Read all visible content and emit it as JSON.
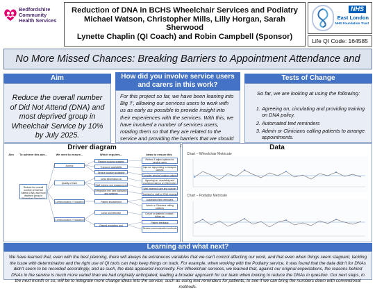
{
  "header": {
    "org_name": [
      "Bedfordshire",
      "Community",
      "Health Services"
    ],
    "title_lines": [
      "Reduction of DNA in BCHS Wheelchair Services and Podiatry",
      "Michael Watson, Christopher Mills, Lilly Horgan, Sarah Sherwood",
      "Lynette Chaplin (QI Coach) and Robin Campbell (Sponsor)"
    ],
    "nhs_badge": "NHS",
    "trust_name": [
      "East London",
      "NHS Foundation Trust"
    ],
    "qi_code": "Life QI Code: 164585"
  },
  "banner": "No More Missed Chances: Breaking Barriers to Appointment Attendance and DNAs!",
  "aim": {
    "heading": "Aim",
    "text": "Reduce the overall number of Did Not Attend (DNA) and most deprived group in Wheelchair Service by 10% by July 2025."
  },
  "involvement": {
    "heading": "How did you involve service users and carers in this work?",
    "text": "For this project so far, we have been leaning into Big ‘I’, allowing our services users to work with us as early as possible to provide insight into their experiences with the services. With this, we have involved a number of services users, rotating them so that they are related to the service and providing the barriers that we should be focusing on in our work."
  },
  "tests": {
    "heading": "Tests of Change",
    "intro": "So far, we are looking at using the following:",
    "items": [
      "Agreeing on, circulating and providing training on DNA policy.",
      "Automated text reminders",
      "Admin or Clinicians calling patients to arrange appointments."
    ]
  },
  "driver": {
    "heading": "Driver diagram",
    "col_headers": [
      "Aim",
      "To achieve this aim...",
      "We need to ensure...",
      "Which requires...",
      "Ideas to ensure this happens"
    ],
    "aim_box": "Reduce the overall number of Did Not Attend (DNA) and most deprived group in Wheelchair Service by 10% by July 2025",
    "primary": [
      "Access",
      "Quality of Care",
      "Communication / Education",
      "Communication / Education"
    ],
    "secondary": [
      "Flexible booking systems",
      "Transport availability",
      "Service location suitability",
      "Clear information on appointments",
      "Staff training and engagement",
      "Integration into care pathways and systems",
      "Patient involvement",
      "Clear and effective communication",
      "Patient reminders and engagement"
    ],
    "ideas": [
      "Review & adjust options for service users",
      "Improve signposting to transport options",
      "Consider service location options",
      "Agreeing on, circulating and providing training on DNA policy",
      "Well informed care and support",
      "Training for staff on DNA process",
      "Automated text reminders",
      "Admin or Clinicians calling patients",
      "Cohort on patients' contact / follow-up",
      "Patient feedback",
      "Review communication methods"
    ]
  },
  "data_section": {
    "heading": "Data",
    "chart1_title": "Chart – Wheelchair Metricate",
    "chart2_title": "Chart – Podiatry Metricate"
  },
  "learning": {
    "heading": "Learning and what next?",
    "text": "We have learned that, even with the best planning, there will always be extraneous variables that we can't control affecting our work, and that even when things seem stagnant, tackling the issue with determination and the right use of QI tools can help keep things on track. For example, when working with the Podiatry service, it was found that the data didn't for DNAs didn't seem to be recorded accordingly, and as such, the data appeared incorrectly. For Wheelchair services, we learned that, against our original expectations, the reasons behind DNAs in the service is much more varied than we had originally anticipated, leading a broader approach for our team when looking to reduce the DNAs in question. Our next steps, in the next month or so, will be to integrate more change ideas into the service, such as using text reminders for patients, to see if we can bring the numbers down with conventional methods."
  },
  "colors": {
    "accent": "#4472c4",
    "nhs": "#005eb8",
    "panel": "#e9edf5",
    "banner": "#dde4ee"
  }
}
